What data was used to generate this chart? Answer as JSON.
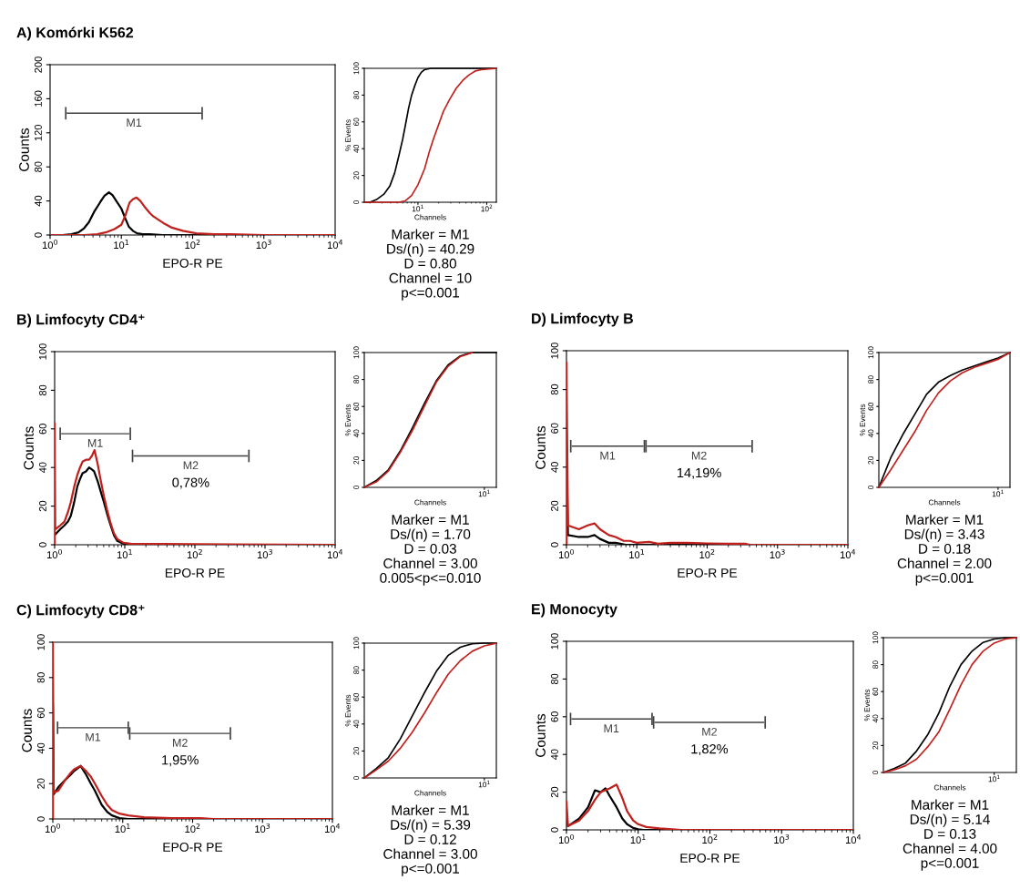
{
  "chart_data": [
    {
      "type": "line",
      "title": "A) Komórki K562",
      "xlabel": "EPO-R PE",
      "ylabel": "Counts",
      "log": "x",
      "xlim": [
        1,
        10000
      ],
      "ylim": [
        0,
        200
      ],
      "xticks": [
        {
          "value": 1,
          "label": "10$^{0}$"
        },
        {
          "value": 10,
          "label": "10$^{1}$"
        },
        {
          "value": 100,
          "label": "10$^{2}$"
        },
        {
          "value": 1000,
          "label": "10$^{3}$"
        },
        {
          "value": 10000,
          "label": "10$^{4}$"
        }
      ],
      "yticks": [
        0,
        40,
        80,
        120,
        160,
        200
      ],
      "series": [
        {
          "color": "#000000",
          "x": [
            1,
            1.5,
            2,
            2.5,
            3,
            3.5,
            4.2,
            5,
            5.8,
            6.7,
            7.5,
            8.5,
            10,
            11.3,
            12.7,
            14.5,
            16.6,
            20,
            25,
            38,
            60,
            10000
          ],
          "values": [
            0,
            0,
            1,
            3,
            8,
            15,
            28,
            38,
            46,
            50,
            47,
            40,
            31,
            20,
            10,
            5,
            2,
            1,
            1,
            0,
            0,
            0
          ]
        },
        {
          "color": "#c0201c",
          "x": [
            1,
            3,
            4.6,
            6,
            8,
            10,
            11.5,
            13,
            14.5,
            16.3,
            18.5,
            21.7,
            25,
            28,
            33,
            39,
            50,
            73,
            112,
            200,
            320,
            1000,
            10000
          ],
          "values": [
            0,
            0,
            1,
            3,
            7,
            12,
            24,
            38,
            42,
            44,
            40,
            32,
            26,
            22,
            18,
            14,
            9,
            5,
            2,
            1,
            1,
            0,
            0
          ]
        },
        {
          "name": "M1",
          "color": "#404040",
          "x": [
            1.66,
            136
          ],
          "values": [
            143,
            143
          ]
        }
      ]
    },
    {
      "type": "line",
      "xlabel": "Channels",
      "ylabel": "% Events",
      "log": "x",
      "xlim": [
        1.66,
        138
      ],
      "ylim": [
        0,
        100
      ],
      "xticks": [
        {
          "value": 10,
          "label": "10$^{1}$"
        },
        {
          "value": 100,
          "label": "10$^{2}$"
        }
      ],
      "yticks": [
        0,
        20,
        40,
        60,
        80,
        100
      ],
      "series": [
        {
          "color": "#000000",
          "x": [
            1.66,
            2,
            2.5,
            3.2,
            3.9,
            4.6,
            5.3,
            6,
            6.6,
            7.3,
            8.1,
            9,
            10,
            11.2,
            12.5,
            15.4,
            138
          ],
          "values": [
            0,
            0,
            2,
            6,
            12,
            22,
            35,
            47,
            58,
            70,
            80,
            87,
            93,
            97,
            99,
            100,
            100
          ]
        },
        {
          "color": "#c0201c",
          "x": [
            1.66,
            5.3,
            6.5,
            8.1,
            10,
            12.5,
            14.5,
            17,
            20,
            23.5,
            29,
            36,
            45,
            55,
            68,
            84,
            138
          ],
          "values": [
            0,
            0,
            1,
            5,
            13,
            25,
            37,
            48,
            58,
            68,
            77,
            85,
            91,
            95,
            98,
            99,
            100
          ]
        }
      ],
      "annotations": [
        "Marker = M1",
        "Ds/(n) = 40.29",
        "D = 0.80",
        "Channel = 10",
        "p<=0.001"
      ]
    },
    {
      "type": "line",
      "title": "B) Limfocyty CD4⁺",
      "xlabel": "EPO-R PE",
      "ylabel": "Counts",
      "log": "x",
      "xlim": [
        1,
        10000
      ],
      "ylim": [
        0,
        100
      ],
      "xticks": [
        {
          "value": 1,
          "label": "10$^{0}$"
        },
        {
          "value": 10,
          "label": "10$^{1}$"
        },
        {
          "value": 100,
          "label": "10$^{2}$"
        },
        {
          "value": 1000,
          "label": "10$^{3}$"
        },
        {
          "value": 10000,
          "label": "10$^{4}$"
        }
      ],
      "yticks": [
        0,
        20,
        40,
        60,
        80,
        100
      ],
      "series": [
        {
          "color": "#000000",
          "x": [
            1,
            1.2,
            1.38,
            1.55,
            1.7,
            1.9,
            2.1,
            2.3,
            2.5,
            2.8,
            3.1,
            3.4,
            3.65,
            4.1,
            4.5,
            5.05,
            5.6,
            6.3,
            7,
            7.8,
            9.6,
            12,
            10000
          ],
          "values": [
            5,
            8,
            10,
            12,
            15,
            22,
            30,
            34,
            37,
            38,
            40,
            39,
            38,
            33,
            28,
            22,
            16,
            10,
            5,
            2,
            0.5,
            0,
            0
          ]
        },
        {
          "color": "#c0201c",
          "x": [
            1,
            1,
            1.02,
            1.2,
            1.38,
            1.55,
            1.7,
            1.9,
            2.1,
            2.3,
            2.5,
            2.8,
            3.1,
            3.4,
            3.7,
            4.1,
            4.5,
            5.05,
            5.6,
            6.3,
            7,
            7.8,
            9.6,
            12,
            100,
            10000
          ],
          "values": [
            0,
            63,
            8,
            10,
            12,
            17,
            22,
            30,
            36,
            40,
            43,
            44,
            44,
            46,
            49,
            42,
            34,
            25,
            18,
            11,
            6,
            3,
            1,
            0.5,
            0.3,
            0
          ]
        },
        {
          "name": "M1",
          "color": "#404040",
          "x": [
            1.2,
            12
          ],
          "values": [
            57.5,
            57.5
          ]
        },
        {
          "name": "M2",
          "color": "#404040",
          "x": [
            12.9,
            589
          ],
          "values": [
            46,
            46
          ]
        }
      ],
      "annotations": [
        "0,78%"
      ]
    },
    {
      "type": "line",
      "xlabel": "Channels",
      "ylabel": "% Events",
      "ylim": [
        0,
        100
      ],
      "yticks": [
        0,
        20,
        40,
        60,
        80,
        100
      ],
      "categories": [
        null,
        null,
        null,
        null,
        null,
        null,
        null,
        null,
        null,
        null,
        "10$^{1}$",
        null
      ],
      "series": [
        {
          "color": "#000000",
          "values": [
            0,
            5,
            13,
            27,
            44,
            62,
            79,
            91,
            97.5,
            100,
            100,
            100
          ]
        },
        {
          "color": "#c0201c",
          "values": [
            0,
            4,
            12,
            26,
            42,
            60,
            78,
            90,
            97,
            100,
            null,
            null
          ]
        }
      ],
      "annotations": [
        "Marker = M1",
        "Ds/(n) = 1.70",
        "D = 0.03",
        "Channel = 3.00",
        "0.005<p<=0.010"
      ]
    },
    {
      "type": "line",
      "title": "D) Limfocyty B",
      "xlabel": "EPO-R PE",
      "ylabel": "Counts",
      "log": "x",
      "xlim": [
        1,
        10000
      ],
      "ylim": [
        0,
        100
      ],
      "xticks": [
        {
          "value": 1,
          "label": "10$^{0}$"
        },
        {
          "value": 10,
          "label": "10$^{1}$"
        },
        {
          "value": 100,
          "label": "10$^{2}$"
        },
        {
          "value": 1000,
          "label": "10$^{3}$"
        },
        {
          "value": 10000,
          "label": "10$^{4}$"
        }
      ],
      "yticks": [
        0,
        20,
        40,
        60,
        80,
        100
      ],
      "series": [
        {
          "color": "#000000",
          "x": [
            1,
            1,
            1.05,
            1.5,
            2,
            2.5,
            3,
            4,
            5,
            7,
            10,
            10000
          ],
          "values": [
            0,
            50,
            5,
            4,
            4,
            5,
            3,
            1,
            1,
            0,
            0,
            0
          ]
        },
        {
          "color": "#c0201c",
          "x": [
            1,
            1,
            1.05,
            1.5,
            2,
            2.5,
            3,
            4,
            5,
            6.5,
            8,
            10,
            15,
            20,
            30,
            50,
            100,
            200,
            350,
            400,
            10000
          ],
          "values": [
            0,
            94,
            10,
            8,
            10,
            11,
            8,
            5,
            4,
            2,
            2,
            1,
            1.5,
            0.5,
            1,
            1,
            0.7,
            0.5,
            0.5,
            0,
            0
          ]
        },
        {
          "name": "M1",
          "color": "#404040",
          "x": [
            1.15,
            12.8
          ],
          "values": [
            50.8,
            50.8
          ]
        },
        {
          "name": "M2",
          "color": "#404040",
          "x": [
            13.5,
            436
          ],
          "values": [
            50.8,
            50.8
          ]
        }
      ],
      "annotations": [
        "14,19%"
      ]
    },
    {
      "type": "line",
      "xlabel": "Channels",
      "ylabel": "% Events",
      "ylim": [
        0,
        100
      ],
      "yticks": [
        0,
        20,
        40,
        60,
        80,
        100
      ],
      "categories": [
        null,
        null,
        null,
        null,
        null,
        null,
        null,
        null,
        null,
        null,
        "10$^{1}$",
        null
      ],
      "series": [
        {
          "color": "#000000",
          "values": [
            0,
            22,
            39,
            54,
            69,
            78,
            83,
            87,
            90,
            93,
            96,
            100
          ]
        },
        {
          "color": "#c0201c",
          "values": [
            0,
            13,
            27,
            41,
            57,
            70,
            79,
            85,
            89,
            92,
            95,
            100
          ]
        }
      ],
      "annotations": [
        "Marker = M1",
        "Ds/(n) = 3.43",
        "D = 0.18",
        "Channel = 2.00",
        "p<=0.001"
      ]
    },
    {
      "type": "line",
      "title": "C) Limfocyty CD8⁺",
      "xlabel": "EPO-R PE",
      "ylabel": "Counts",
      "log": "x",
      "xlim": [
        1,
        10000
      ],
      "ylim": [
        0,
        100
      ],
      "xticks": [
        {
          "value": 1,
          "label": "10$^{0}$"
        },
        {
          "value": 10,
          "label": "10$^{1}$"
        },
        {
          "value": 100,
          "label": "10$^{2}$"
        },
        {
          "value": 1000,
          "label": "10$^{3}$"
        },
        {
          "value": 10000,
          "label": "10$^{4}$"
        }
      ],
      "yticks": [
        0,
        20,
        40,
        60,
        80,
        100
      ],
      "series": [
        {
          "color": "#000000",
          "x": [
            1,
            1,
            1.03,
            1.2,
            1.5,
            1.8,
            2,
            2.5,
            3,
            3.5,
            4,
            5,
            6,
            7,
            9,
            12,
            10000
          ],
          "values": [
            0,
            65,
            14,
            18,
            22,
            25,
            27,
            30,
            25,
            20,
            16,
            8,
            4,
            2,
            0.5,
            0,
            0
          ]
        },
        {
          "color": "#c0201c",
          "x": [
            1,
            1,
            1.03,
            1.2,
            1.5,
            1.8,
            2,
            2.5,
            3,
            3.5,
            4,
            5,
            6,
            7,
            9,
            12,
            20,
            50,
            130,
            200,
            10000
          ],
          "values": [
            0,
            100,
            15,
            16,
            22,
            26,
            28,
            30,
            27,
            24,
            20,
            13,
            8,
            5,
            3,
            2,
            1,
            0.5,
            0.5,
            0,
            0
          ]
        },
        {
          "name": "M1",
          "color": "#404040",
          "x": [
            1.17,
            12
          ],
          "values": [
            51.6,
            51.6
          ]
        },
        {
          "name": "M2",
          "color": "#404040",
          "x": [
            12.6,
            347
          ],
          "values": [
            48.4,
            48.4
          ]
        }
      ],
      "annotations": [
        "1,95%"
      ]
    },
    {
      "type": "line",
      "xlabel": "Channels",
      "ylabel": "% Events",
      "ylim": [
        0,
        100
      ],
      "yticks": [
        0,
        20,
        40,
        60,
        80,
        100
      ],
      "categories": [
        null,
        null,
        null,
        null,
        null,
        null,
        null,
        null,
        null,
        null,
        "10$^{1}$",
        null
      ],
      "series": [
        {
          "color": "#000000",
          "values": [
            0,
            7,
            15,
            29,
            46,
            63,
            79,
            91,
            97,
            99.5,
            100,
            100
          ]
        },
        {
          "color": "#c0201c",
          "values": [
            0,
            6,
            12.5,
            22,
            34,
            48,
            63,
            77,
            87,
            94,
            98,
            100
          ]
        }
      ],
      "annotations": [
        "Marker = M1",
        "Ds/(n) = 5.39",
        "D = 0.12",
        "Channel = 3.00",
        "p<=0.001"
      ]
    },
    {
      "type": "line",
      "title": "E) Monocyty",
      "xlabel": "EPO-R PE",
      "ylabel": "Counts",
      "log": "x",
      "xlim": [
        1,
        10000
      ],
      "ylim": [
        0,
        100
      ],
      "xticks": [
        {
          "value": 1,
          "label": "10$^{0}$"
        },
        {
          "value": 10,
          "label": "10$^{1}$"
        },
        {
          "value": 100,
          "label": "10$^{2}$"
        },
        {
          "value": 1000,
          "label": "10$^{3}$"
        },
        {
          "value": 10000,
          "label": "10$^{4}$"
        }
      ],
      "yticks": [
        0,
        20,
        40,
        60,
        80,
        100
      ],
      "series": [
        {
          "color": "#000000",
          "x": [
            1,
            1.05,
            1.5,
            2,
            2.5,
            3,
            3.5,
            4,
            5,
            6,
            7,
            8.5,
            10,
            12,
            10000
          ],
          "values": [
            5,
            2,
            6,
            12,
            21,
            20,
            22,
            18,
            12,
            6,
            3,
            1,
            0.3,
            0,
            0
          ]
        },
        {
          "color": "#c0201c",
          "x": [
            1,
            1.05,
            1.5,
            2,
            2.5,
            3,
            4,
            5,
            6,
            7,
            8.5,
            10,
            13,
            20,
            30,
            40,
            10000
          ],
          "values": [
            15,
            2,
            5,
            10,
            16,
            20,
            22,
            24,
            17,
            10,
            5,
            3,
            1.5,
            0.8,
            0.3,
            0,
            0
          ]
        },
        {
          "name": "M1",
          "color": "#404040",
          "x": [
            1.14,
            15.6
          ],
          "values": [
            58.8,
            58.8
          ]
        },
        {
          "name": "M2",
          "color": "#404040",
          "x": [
            16.4,
            590
          ],
          "values": [
            57,
            57
          ]
        }
      ],
      "annotations": [
        "1,82%"
      ]
    },
    {
      "type": "line",
      "xlabel": "Channels",
      "ylabel": "% Events",
      "ylim": [
        0,
        100
      ],
      "yticks": [
        0,
        20,
        40,
        60,
        80,
        100
      ],
      "categories": [
        null,
        null,
        null,
        null,
        null,
        null,
        null,
        null,
        null,
        null,
        "10$^{1}$",
        null,
        null
      ],
      "series": [
        {
          "color": "#000000",
          "values": [
            0,
            3,
            7,
            16,
            28,
            44,
            64,
            80,
            90,
            96.5,
            99,
            100,
            100
          ]
        },
        {
          "color": "#c0201c",
          "values": [
            0,
            2,
            5,
            10,
            19,
            30,
            47,
            65,
            80,
            90,
            96,
            99,
            100
          ]
        }
      ],
      "annotations": [
        "Marker = M1",
        "Ds/(n) = 5.14",
        "D = 0.13",
        "Channel = 4.00",
        "p<=0.001"
      ]
    }
  ]
}
